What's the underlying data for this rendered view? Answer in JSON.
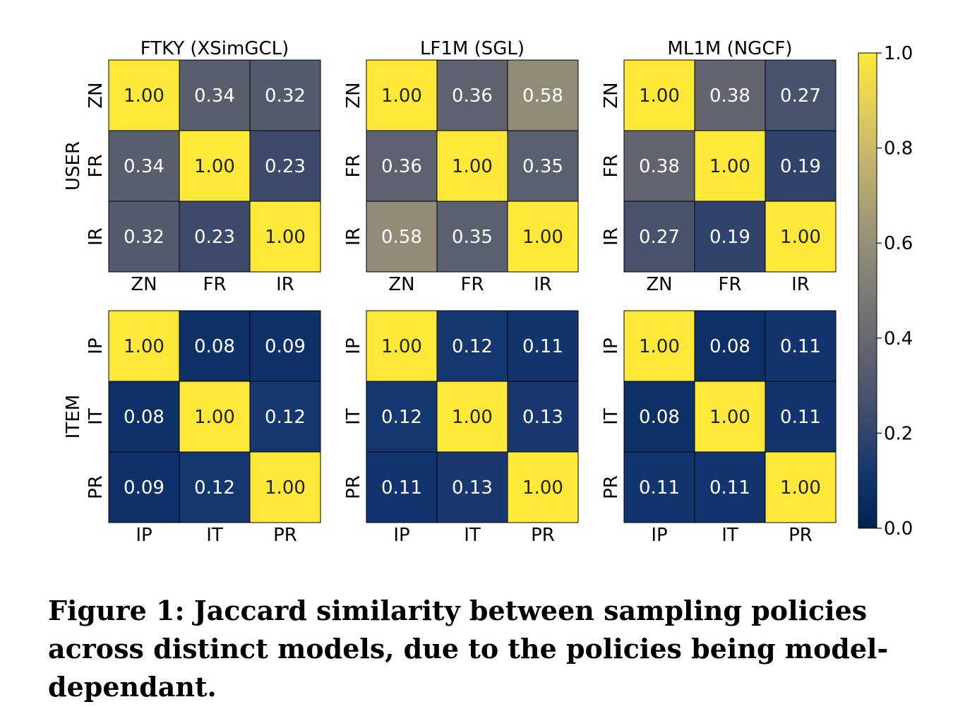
{
  "figure": {
    "caption": "Figure 1: Jaccard similarity between sampling policies across distinct models, due to the policies being model-dependant.",
    "colormap": "cividis",
    "colormap_stops": [
      "#00224e",
      "#123570",
      "#3b496c",
      "#575d6d",
      "#707173",
      "#8a8779",
      "#a69d75",
      "#c4b56c",
      "#e4cf5b",
      "#fee838"
    ]
  },
  "chart_data": [
    {
      "type": "heatmap",
      "title": "FTKY (XSimGCL)",
      "row_group_label": "USER",
      "rows": [
        "ZN",
        "FR",
        "IR"
      ],
      "cols": [
        "ZN",
        "FR",
        "IR"
      ],
      "values": [
        [
          1.0,
          0.34,
          0.32
        ],
        [
          0.34,
          1.0,
          0.23
        ],
        [
          0.32,
          0.23,
          1.0
        ]
      ]
    },
    {
      "type": "heatmap",
      "title": "LF1M (SGL)",
      "row_group_label": "",
      "rows": [
        "ZN",
        "FR",
        "IR"
      ],
      "cols": [
        "ZN",
        "FR",
        "IR"
      ],
      "values": [
        [
          1.0,
          0.36,
          0.58
        ],
        [
          0.36,
          1.0,
          0.35
        ],
        [
          0.58,
          0.35,
          1.0
        ]
      ]
    },
    {
      "type": "heatmap",
      "title": "ML1M (NGCF)",
      "row_group_label": "",
      "rows": [
        "ZN",
        "FR",
        "IR"
      ],
      "cols": [
        "ZN",
        "FR",
        "IR"
      ],
      "values": [
        [
          1.0,
          0.38,
          0.27
        ],
        [
          0.38,
          1.0,
          0.19
        ],
        [
          0.27,
          0.19,
          1.0
        ]
      ]
    },
    {
      "type": "heatmap",
      "title": "",
      "row_group_label": "ITEM",
      "rows": [
        "IP",
        "IT",
        "PR"
      ],
      "cols": [
        "IP",
        "IT",
        "PR"
      ],
      "values": [
        [
          1.0,
          0.08,
          0.09
        ],
        [
          0.08,
          1.0,
          0.12
        ],
        [
          0.09,
          0.12,
          1.0
        ]
      ]
    },
    {
      "type": "heatmap",
      "title": "",
      "row_group_label": "",
      "rows": [
        "IP",
        "IT",
        "PR"
      ],
      "cols": [
        "IP",
        "IT",
        "PR"
      ],
      "values": [
        [
          1.0,
          0.12,
          0.11
        ],
        [
          0.12,
          1.0,
          0.13
        ],
        [
          0.11,
          0.13,
          1.0
        ]
      ]
    },
    {
      "type": "heatmap",
      "title": "",
      "row_group_label": "",
      "rows": [
        "IP",
        "IT",
        "PR"
      ],
      "cols": [
        "IP",
        "IT",
        "PR"
      ],
      "values": [
        [
          1.0,
          0.08,
          0.11
        ],
        [
          0.08,
          1.0,
          0.11
        ],
        [
          0.11,
          0.11,
          1.0
        ]
      ]
    }
  ],
  "colorbar": {
    "range": [
      0.0,
      1.0
    ],
    "ticks": [
      "0.0",
      "0.2",
      "0.4",
      "0.6",
      "0.8",
      "1.0"
    ]
  }
}
